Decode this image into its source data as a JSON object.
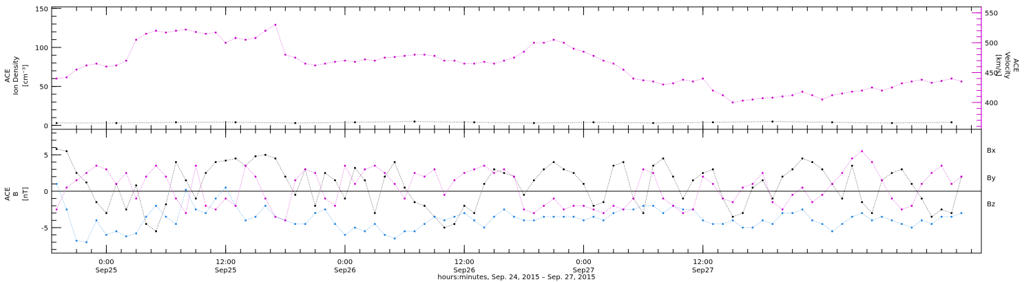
{
  "chart_data": [
    {
      "type": "scatter",
      "panel": "top",
      "left_axis": {
        "label_lines": [
          "ACE",
          "Ion Density"
        ],
        "unit": "[cm⁻³]",
        "ylim": [
          -5,
          152
        ],
        "ticks": [
          "0",
          "50",
          "100",
          "150"
        ]
      },
      "right_axis": {
        "label_lines": [
          "ACE",
          "Velocity"
        ],
        "unit": "[km/s]",
        "ylim": [
          355,
          560
        ],
        "ticks": [
          "400",
          "450",
          "500",
          "550"
        ],
        "color": "#cc00cc"
      },
      "series": [
        {
          "name": "",
          "axis": "right",
          "color": "#cc00cc",
          "x": [
            -5,
            -4,
            -3,
            -2,
            -1,
            0,
            1,
            2,
            3,
            4,
            5,
            6,
            7,
            8,
            9,
            10,
            11,
            12,
            13,
            14,
            15,
            16,
            17,
            18,
            19,
            20,
            21,
            22,
            23,
            24,
            25,
            26,
            27,
            28,
            29,
            30,
            31,
            32,
            33,
            34,
            35,
            36,
            37,
            38,
            39,
            40,
            41,
            42,
            43,
            44,
            45,
            46,
            47,
            48,
            49,
            50,
            51,
            52,
            53,
            54,
            55,
            56,
            57,
            58,
            59,
            60,
            61,
            62,
            63,
            64,
            65,
            66,
            67,
            68,
            69,
            70,
            71,
            72,
            73,
            74,
            75,
            76,
            77,
            78,
            79,
            80,
            81,
            82,
            83,
            84,
            85,
            86
          ],
          "values": [
            440,
            442,
            455,
            462,
            465,
            460,
            462,
            470,
            505,
            515,
            520,
            517,
            520,
            522,
            518,
            515,
            517,
            500,
            508,
            505,
            508,
            520,
            530,
            480,
            475,
            465,
            462,
            465,
            468,
            470,
            468,
            472,
            470,
            475,
            476,
            478,
            480,
            480,
            478,
            470,
            470,
            465,
            465,
            468,
            465,
            470,
            475,
            485,
            500,
            500,
            505,
            500,
            490,
            485,
            478,
            470,
            465,
            455,
            440,
            437,
            435,
            430,
            432,
            438,
            435,
            440,
            420,
            412,
            400,
            403,
            405,
            407,
            408,
            410,
            412,
            418,
            412,
            405,
            412,
            415,
            418,
            420,
            425,
            420,
            425,
            432,
            435,
            438,
            433,
            436,
            440,
            435
          ]
        },
        {
          "name": "",
          "axis": "left",
          "color": "#000000",
          "x": [
            -5,
            1,
            7,
            13,
            19,
            25,
            31,
            37,
            43,
            49,
            55,
            61,
            67,
            73,
            79,
            85
          ],
          "values": [
            3,
            3,
            4,
            4,
            3,
            4,
            5,
            4,
            3,
            4,
            3,
            4,
            5,
            4,
            3,
            4
          ]
        }
      ]
    },
    {
      "type": "scatter",
      "panel": "bottom",
      "left_axis": {
        "label_lines": [
          "ACE",
          "B"
        ],
        "unit": "[nT]",
        "ylim": [
          -8.5,
          8.5
        ],
        "ticks": [
          "-5",
          "0",
          "5"
        ]
      },
      "legend": [
        "Bx",
        "By",
        "Bz"
      ],
      "legend_position": "right",
      "series": [
        {
          "name": "Bx",
          "color": "#000000",
          "x": [
            -5,
            -4,
            -3,
            -2,
            -1,
            0,
            1,
            2,
            3,
            4,
            5,
            6,
            7,
            8,
            9,
            10,
            11,
            12,
            13,
            14,
            15,
            16,
            17,
            18,
            19,
            20,
            21,
            22,
            23,
            24,
            25,
            26,
            27,
            28,
            29,
            30,
            31,
            32,
            33,
            34,
            35,
            36,
            37,
            38,
            39,
            40,
            41,
            42,
            43,
            44,
            45,
            46,
            47,
            48,
            49,
            50,
            51,
            52,
            53,
            54,
            55,
            56,
            57,
            58,
            59,
            60,
            61,
            62,
            63,
            64,
            65,
            66,
            67,
            68,
            69,
            70,
            71,
            72,
            73,
            74,
            75,
            76,
            77,
            78,
            79,
            80,
            81,
            82,
            83,
            84,
            85,
            86
          ],
          "values": [
            5.8,
            5.5,
            2.5,
            1.2,
            -1.5,
            -3.0,
            1.0,
            -2.5,
            0.8,
            -4.5,
            -5.5,
            -1.8,
            4.0,
            1.5,
            -1.0,
            2.5,
            4.0,
            4.2,
            4.5,
            3.5,
            4.8,
            5.0,
            4.5,
            2.0,
            -0.5,
            3.0,
            -2.0,
            2.5,
            1.5,
            -1.0,
            3.2,
            1.5,
            -3.0,
            2.0,
            4.0,
            0.5,
            -1.5,
            -2.0,
            -3.5,
            -5.0,
            -4.5,
            -2.0,
            -3.0,
            1.0,
            3.0,
            2.5,
            2.0,
            -0.5,
            1.5,
            3.0,
            4.0,
            3.0,
            2.5,
            1.0,
            -2.0,
            -1.5,
            3.5,
            4.0,
            -1.0,
            -3.0,
            3.5,
            4.5,
            2.0,
            -1.0,
            1.5,
            2.5,
            3.0,
            -1.0,
            -3.5,
            -3.0,
            0.5,
            1.5,
            -1.0,
            2.0,
            3.0,
            4.5,
            4.0,
            3.0,
            1.0,
            -1.0,
            3.5,
            -1.5,
            -3.0,
            1.5,
            2.5,
            3.0,
            1.0,
            -1.0,
            -3.5,
            -2.5,
            -3.0,
            2.0
          ]
        },
        {
          "name": "By",
          "color": "#1a80e0",
          "x": [
            -5,
            -4,
            -3,
            -2,
            -1,
            0,
            1,
            2,
            3,
            4,
            5,
            6,
            7,
            8,
            9,
            10,
            11,
            12,
            13,
            14,
            15,
            16,
            17,
            18,
            19,
            20,
            21,
            22,
            23,
            24,
            25,
            26,
            27,
            28,
            29,
            30,
            31,
            32,
            33,
            34,
            35,
            36,
            37,
            38,
            39,
            40,
            41,
            42,
            43,
            44,
            45,
            46,
            47,
            48,
            49,
            50,
            51,
            52,
            53,
            54,
            55,
            56,
            57,
            58,
            59,
            60,
            61,
            62,
            63,
            64,
            65,
            66,
            67,
            68,
            69,
            70,
            71,
            72,
            73,
            74,
            75,
            76,
            77,
            78,
            79,
            80,
            81,
            82,
            83,
            84,
            85,
            86
          ],
          "values": [
            1.0,
            -2.5,
            -6.8,
            -7.0,
            -4.0,
            -6.0,
            -5.5,
            -6.2,
            -5.8,
            -3.5,
            -2.0,
            -3.5,
            -4.5,
            0.2,
            -2.5,
            -3.0,
            -1.0,
            0.5,
            -2.0,
            -4.0,
            -3.5,
            -2.0,
            -3.5,
            -4.0,
            -4.5,
            -4.5,
            -3.0,
            -2.5,
            -4.5,
            -6.0,
            -5.0,
            -5.5,
            -4.5,
            -6.0,
            -6.5,
            -5.5,
            -5.5,
            -4.5,
            -3.5,
            -4.0,
            -3.5,
            -3.0,
            -4.0,
            -5.0,
            -3.5,
            -2.5,
            -3.5,
            -4.0,
            -4.0,
            -3.5,
            -3.5,
            -3.5,
            -3.5,
            -4.0,
            -3.5,
            -4.0,
            -3.0,
            -2.5,
            -2.5,
            -2.0,
            -2.0,
            -3.0,
            -2.0,
            -2.5,
            -2.5,
            -4.0,
            -4.5,
            -4.5,
            -4.0,
            -5.0,
            -5.0,
            -4.0,
            -4.5,
            -3.0,
            -3.0,
            -2.5,
            -4.0,
            -4.5,
            -5.5,
            -4.5,
            -3.5,
            -3.0,
            -4.0,
            -3.5,
            -4.0,
            -4.5,
            -5.0,
            -4.0,
            -4.5,
            -3.5,
            -3.5,
            -3.0
          ]
        },
        {
          "name": "Bz",
          "color": "#cc00cc",
          "x": [
            -5,
            -4,
            -3,
            -2,
            -1,
            0,
            1,
            2,
            3,
            4,
            5,
            6,
            7,
            8,
            9,
            10,
            11,
            12,
            13,
            14,
            15,
            16,
            17,
            18,
            19,
            20,
            21,
            22,
            23,
            24,
            25,
            26,
            27,
            28,
            29,
            30,
            31,
            32,
            33,
            34,
            35,
            36,
            37,
            38,
            39,
            40,
            41,
            42,
            43,
            44,
            45,
            46,
            47,
            48,
            49,
            50,
            51,
            52,
            53,
            54,
            55,
            56,
            57,
            58,
            59,
            60,
            61,
            62,
            63,
            64,
            65,
            66,
            67,
            68,
            69,
            70,
            71,
            72,
            73,
            74,
            75,
            76,
            77,
            78,
            79,
            80,
            81,
            82,
            83,
            84,
            85,
            86
          ],
          "values": [
            -2.5,
            0.5,
            1.5,
            2.5,
            3.5,
            3.0,
            1.0,
            2.5,
            -1.0,
            2.0,
            3.5,
            2.0,
            -1.0,
            -3.0,
            3.5,
            -2.0,
            -2.5,
            -1.0,
            -2.0,
            3.5,
            2.0,
            -1.0,
            -3.5,
            -4.0,
            1.5,
            3.0,
            2.5,
            -1.0,
            -2.0,
            3.5,
            1.0,
            3.0,
            3.5,
            2.5,
            1.0,
            -1.0,
            2.5,
            2.0,
            3.0,
            -0.5,
            1.5,
            2.5,
            3.0,
            3.5,
            2.5,
            3.0,
            2.0,
            -2.5,
            -3.0,
            -2.0,
            -1.0,
            -2.5,
            -2.0,
            -2.0,
            -2.5,
            -3.0,
            -2.0,
            -2.5,
            -1.0,
            3.0,
            2.5,
            -1.0,
            -2.0,
            -3.0,
            -2.5,
            2.0,
            1.0,
            -1.0,
            -1.5,
            0.5,
            1.0,
            2.5,
            -1.5,
            -2.5,
            -0.5,
            0.5,
            -1.5,
            -0.5,
            1.0,
            2.5,
            4.5,
            5.5,
            4.0,
            1.5,
            -1.0,
            -2.5,
            -2.0,
            1.0,
            2.5,
            3.5,
            1.0,
            2.0
          ]
        }
      ]
    }
  ],
  "x_axis": {
    "xlim": [
      -5.5,
      88
    ],
    "tick_positions": [
      0,
      12,
      24,
      36,
      48,
      60
    ],
    "tick_labels": [
      {
        "time": "0:00",
        "date": "Sep25"
      },
      {
        "time": "12:00",
        "date": "Sep25"
      },
      {
        "time": "0:00",
        "date": "Sep26"
      },
      {
        "time": "12:00",
        "date": "Sep26"
      },
      {
        "time": "0:00",
        "date": "Sep27"
      },
      {
        "time": "12:00",
        "date": "Sep27"
      }
    ],
    "label": "hours:minutes, Sep. 24, 2015 – Sep. 27, 2015"
  },
  "colors": {
    "velocity": "#cc00cc",
    "density": "#000000",
    "bx": "#000000",
    "by": "#1a80e0",
    "bz": "#cc00cc"
  }
}
